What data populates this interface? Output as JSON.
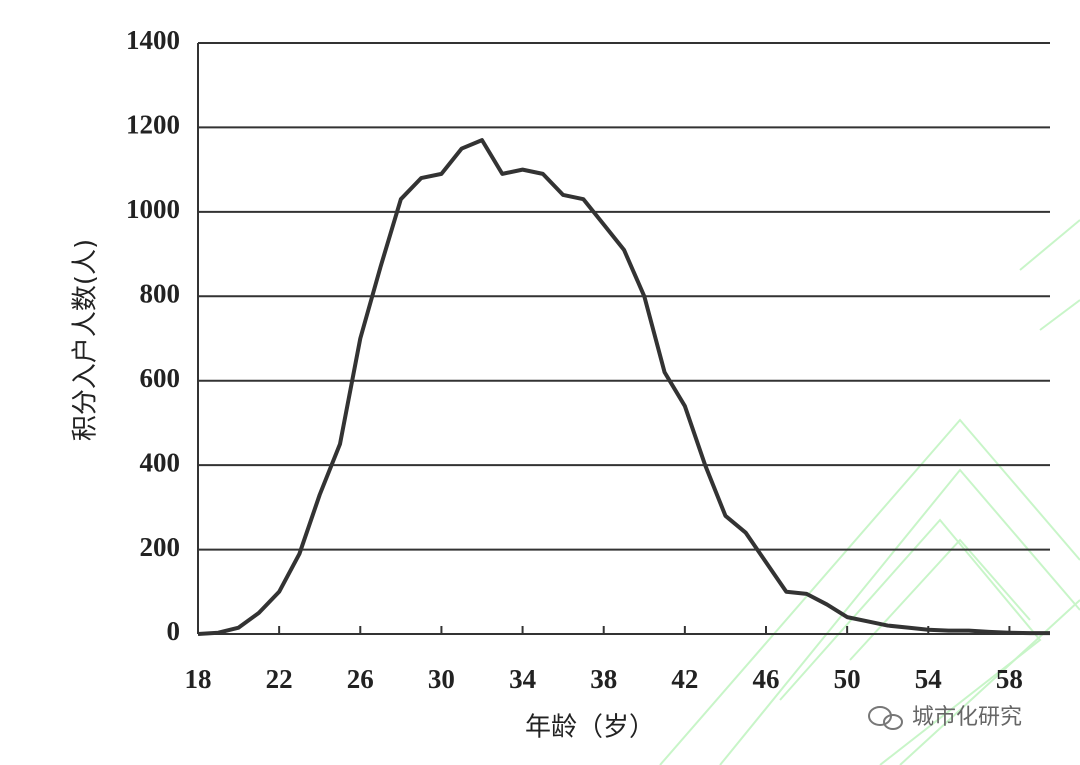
{
  "chart_data": {
    "type": "line",
    "x_label": "年龄（岁）",
    "y_label": "积分入户人数(人)",
    "watermark": "城市化研究",
    "x": [
      18,
      19,
      20,
      21,
      22,
      23,
      24,
      25,
      26,
      27,
      28,
      29,
      30,
      31,
      32,
      33,
      34,
      35,
      36,
      37,
      38,
      39,
      40,
      41,
      42,
      43,
      44,
      45,
      46,
      47,
      48,
      49,
      50,
      51,
      52,
      53,
      54,
      55,
      56,
      57,
      58,
      59,
      60
    ],
    "series": [
      {
        "color": "#333333",
        "values": [
          0,
          3,
          15,
          50,
          100,
          190,
          330,
          450,
          700,
          870,
          1030,
          1080,
          1090,
          1150,
          1170,
          1090,
          1100,
          1090,
          1040,
          1030,
          970,
          910,
          800,
          620,
          540,
          400,
          280,
          240,
          170,
          100,
          95,
          70,
          40,
          30,
          20,
          15,
          10,
          8,
          8,
          5,
          3,
          2,
          2
        ]
      }
    ],
    "xlim": [
      18,
      60
    ],
    "xticks": [
      18,
      22,
      26,
      30,
      34,
      38,
      42,
      46,
      50,
      54,
      58
    ],
    "ylim": [
      0,
      1400
    ],
    "yticks": [
      0,
      200,
      400,
      600,
      800,
      1000,
      1200,
      1400
    ],
    "grid": true
  }
}
